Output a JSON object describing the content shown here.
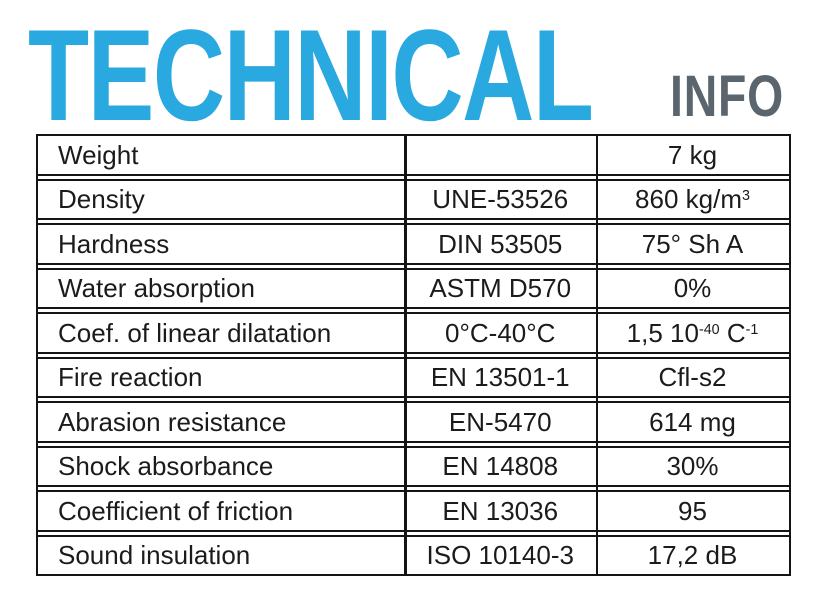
{
  "header": {
    "title": "TECHNICAL",
    "subtitle": "INFO"
  },
  "colors": {
    "title": "#29A9E0",
    "subtitle": "#5B656E",
    "line": "#141414",
    "text": "#1B1B1B",
    "background": "#FFFFFF"
  },
  "table": {
    "columns": [
      "property",
      "standard",
      "value"
    ],
    "rows": [
      {
        "property": "Weight",
        "standard": "",
        "value_parts": [
          {
            "t": "7 kg"
          }
        ]
      },
      {
        "property": "Density",
        "standard": "UNE-53526",
        "value_parts": [
          {
            "t": "860 kg/m"
          },
          {
            "t": "3",
            "sup": true
          }
        ]
      },
      {
        "property": "Hardness",
        "standard": "DIN 53505",
        "value_parts": [
          {
            "t": "75° Sh A"
          }
        ]
      },
      {
        "property": "Water absorption",
        "standard": "ASTM D570",
        "value_parts": [
          {
            "t": "0%"
          }
        ]
      },
      {
        "property": "Coef. of linear dilatation",
        "standard": "0°C-40°C",
        "value_parts": [
          {
            "t": "1,5 10"
          },
          {
            "t": "-40",
            "sup": true
          },
          {
            "t": " C"
          },
          {
            "t": "-1",
            "sup": true
          }
        ]
      },
      {
        "property": "Fire reaction",
        "standard": "EN 13501-1",
        "value_parts": [
          {
            "t": "Cfl-s2"
          }
        ]
      },
      {
        "property": "Abrasion resistance",
        "standard": "EN-5470",
        "value_parts": [
          {
            "t": "614 mg"
          }
        ]
      },
      {
        "property": "Shock absorbance",
        "standard": "EN 14808",
        "value_parts": [
          {
            "t": "30%"
          }
        ]
      },
      {
        "property": "Coefficient of friction",
        "standard": "EN 13036",
        "value_parts": [
          {
            "t": "95"
          }
        ]
      },
      {
        "property": "Sound insulation",
        "standard": "ISO 10140-3",
        "value_parts": [
          {
            "t": "17,2 dB"
          }
        ]
      }
    ]
  }
}
